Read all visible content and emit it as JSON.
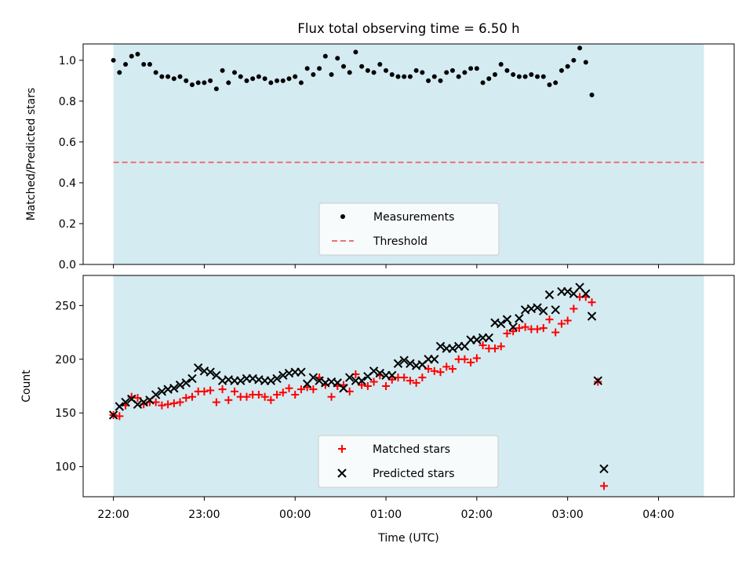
{
  "title": "Flux total observing time = 6.50 h",
  "xlabel": "Time (UTC)",
  "x_ticks": [
    "22:00",
    "23:00",
    "00:00",
    "01:00",
    "02:00",
    "03:00",
    "04:00"
  ],
  "colors": {
    "shade": "#d4ebf1",
    "measurement": "#000000",
    "threshold": "#f07070",
    "matched": "#ff0000",
    "predicted": "#000000"
  },
  "chart_data": [
    {
      "type": "scatter",
      "ylabel": "Matched/Predicted stars",
      "ylim": [
        0,
        1.08
      ],
      "y_ticks": [
        "0.0",
        "0.2",
        "0.4",
        "0.6",
        "0.8",
        "1.0"
      ],
      "x_range_hours": [
        "21:40",
        "04:50"
      ],
      "observing_window": [
        "22:00",
        "04:30"
      ],
      "legend": {
        "placement": "lower center",
        "entries": [
          "Measurements",
          "Threshold"
        ]
      },
      "threshold": 0.5,
      "series": [
        {
          "name": "Measurements",
          "marker": "dot",
          "points": [
            [
              "22:00",
              1.0
            ],
            [
              "22:04",
              0.94
            ],
            [
              "22:08",
              0.98
            ],
            [
              "22:12",
              1.02
            ],
            [
              "22:16",
              1.03
            ],
            [
              "22:20",
              0.98
            ],
            [
              "22:24",
              0.98
            ],
            [
              "22:28",
              0.94
            ],
            [
              "22:32",
              0.92
            ],
            [
              "22:36",
              0.92
            ],
            [
              "22:40",
              0.91
            ],
            [
              "22:44",
              0.92
            ],
            [
              "22:48",
              0.9
            ],
            [
              "22:52",
              0.88
            ],
            [
              "22:56",
              0.89
            ],
            [
              "23:00",
              0.89
            ],
            [
              "23:04",
              0.9
            ],
            [
              "23:08",
              0.86
            ],
            [
              "23:12",
              0.95
            ],
            [
              "23:16",
              0.89
            ],
            [
              "23:20",
              0.94
            ],
            [
              "23:24",
              0.92
            ],
            [
              "23:28",
              0.9
            ],
            [
              "23:32",
              0.91
            ],
            [
              "23:36",
              0.92
            ],
            [
              "23:40",
              0.91
            ],
            [
              "23:44",
              0.89
            ],
            [
              "23:48",
              0.9
            ],
            [
              "23:52",
              0.9
            ],
            [
              "23:56",
              0.91
            ],
            [
              "00:00",
              0.92
            ],
            [
              "00:04",
              0.89
            ],
            [
              "00:08",
              0.96
            ],
            [
              "00:12",
              0.93
            ],
            [
              "00:16",
              0.96
            ],
            [
              "00:20",
              1.02
            ],
            [
              "00:24",
              0.93
            ],
            [
              "00:28",
              1.01
            ],
            [
              "00:32",
              0.97
            ],
            [
              "00:36",
              0.94
            ],
            [
              "00:40",
              1.04
            ],
            [
              "00:44",
              0.97
            ],
            [
              "00:48",
              0.95
            ],
            [
              "00:52",
              0.94
            ],
            [
              "00:56",
              0.98
            ],
            [
              "01:00",
              0.95
            ],
            [
              "01:04",
              0.93
            ],
            [
              "01:08",
              0.92
            ],
            [
              "01:12",
              0.92
            ],
            [
              "01:16",
              0.92
            ],
            [
              "01:20",
              0.95
            ],
            [
              "01:24",
              0.94
            ],
            [
              "01:28",
              0.9
            ],
            [
              "01:32",
              0.92
            ],
            [
              "01:36",
              0.9
            ],
            [
              "01:40",
              0.94
            ],
            [
              "01:44",
              0.95
            ],
            [
              "01:48",
              0.92
            ],
            [
              "01:52",
              0.94
            ],
            [
              "01:56",
              0.96
            ],
            [
              "02:00",
              0.96
            ],
            [
              "02:04",
              0.89
            ],
            [
              "02:08",
              0.91
            ],
            [
              "02:12",
              0.93
            ],
            [
              "02:16",
              0.98
            ],
            [
              "02:20",
              0.95
            ],
            [
              "02:24",
              0.93
            ],
            [
              "02:28",
              0.92
            ],
            [
              "02:32",
              0.92
            ],
            [
              "02:36",
              0.93
            ],
            [
              "02:40",
              0.92
            ],
            [
              "02:44",
              0.92
            ],
            [
              "02:48",
              0.88
            ],
            [
              "02:52",
              0.89
            ],
            [
              "02:56",
              0.95
            ],
            [
              "03:00",
              0.97
            ],
            [
              "03:04",
              1.0
            ],
            [
              "03:08",
              1.06
            ],
            [
              "03:12",
              0.99
            ],
            [
              "03:16",
              0.83
            ]
          ]
        }
      ]
    },
    {
      "type": "scatter",
      "ylabel": "Count",
      "ylim": [
        72,
        278
      ],
      "y_ticks": [
        "100",
        "150",
        "200",
        "250"
      ],
      "legend": {
        "placement": "lower center",
        "entries": [
          "Matched stars",
          "Predicted stars"
        ]
      },
      "series": [
        {
          "name": "Matched stars",
          "marker": "plus",
          "points": [
            [
              "22:00",
              148
            ],
            [
              "22:04",
              147
            ],
            [
              "22:08",
              157
            ],
            [
              "22:12",
              165
            ],
            [
              "22:16",
              164
            ],
            [
              "22:20",
              158
            ],
            [
              "22:24",
              160
            ],
            [
              "22:28",
              160
            ],
            [
              "22:32",
              157
            ],
            [
              "22:36",
              158
            ],
            [
              "22:40",
              159
            ],
            [
              "22:44",
              160
            ],
            [
              "22:48",
              164
            ],
            [
              "22:52",
              165
            ],
            [
              "22:56",
              170
            ],
            [
              "23:00",
              170
            ],
            [
              "23:04",
              171
            ],
            [
              "23:08",
              160
            ],
            [
              "23:12",
              172
            ],
            [
              "23:16",
              162
            ],
            [
              "23:20",
              170
            ],
            [
              "23:24",
              165
            ],
            [
              "23:28",
              165
            ],
            [
              "23:32",
              167
            ],
            [
              "23:36",
              167
            ],
            [
              "23:40",
              165
            ],
            [
              "23:44",
              162
            ],
            [
              "23:48",
              167
            ],
            [
              "23:52",
              169
            ],
            [
              "23:56",
              173
            ],
            [
              "00:00",
              167
            ],
            [
              "00:04",
              172
            ],
            [
              "00:08",
              174
            ],
            [
              "00:12",
              172
            ],
            [
              "00:16",
              183
            ],
            [
              "00:20",
              176
            ],
            [
              "00:24",
              165
            ],
            [
              "00:28",
              175
            ],
            [
              "00:32",
              176
            ],
            [
              "00:36",
              170
            ],
            [
              "00:40",
              186
            ],
            [
              "00:44",
              176
            ],
            [
              "00:48",
              175
            ],
            [
              "00:52",
              179
            ],
            [
              "00:56",
              185
            ],
            [
              "01:00",
              175
            ],
            [
              "01:04",
              181
            ],
            [
              "01:08",
              183
            ],
            [
              "01:12",
              183
            ],
            [
              "01:16",
              180
            ],
            [
              "01:20",
              178
            ],
            [
              "01:24",
              183
            ],
            [
              "01:28",
              191
            ],
            [
              "01:32",
              189
            ],
            [
              "01:36",
              188
            ],
            [
              "01:40",
              193
            ],
            [
              "01:44",
              191
            ],
            [
              "01:48",
              200
            ],
            [
              "01:52",
              200
            ],
            [
              "01:56",
              197
            ],
            [
              "02:00",
              201
            ],
            [
              "02:04",
              213
            ],
            [
              "02:08",
              210
            ],
            [
              "02:12",
              210
            ],
            [
              "02:16",
              212
            ],
            [
              "02:20",
              224
            ],
            [
              "02:24",
              226
            ],
            [
              "02:28",
              229
            ],
            [
              "02:32",
              230
            ],
            [
              "02:36",
              228
            ],
            [
              "02:40",
              228
            ],
            [
              "02:44",
              229
            ],
            [
              "02:48",
              237
            ],
            [
              "02:52",
              225
            ],
            [
              "02:56",
              233
            ],
            [
              "03:00",
              236
            ],
            [
              "03:04",
              247
            ],
            [
              "03:08",
              258
            ],
            [
              "03:12",
              258
            ],
            [
              "03:16",
              253
            ],
            [
              "03:20",
              179
            ],
            [
              "03:24",
              82
            ]
          ]
        },
        {
          "name": "Predicted stars",
          "marker": "x",
          "points": [
            [
              "22:00",
              148
            ],
            [
              "22:04",
              156
            ],
            [
              "22:08",
              160
            ],
            [
              "22:12",
              163
            ],
            [
              "22:16",
              158
            ],
            [
              "22:20",
              160
            ],
            [
              "22:24",
              162
            ],
            [
              "22:28",
              167
            ],
            [
              "22:32",
              170
            ],
            [
              "22:36",
              172
            ],
            [
              "22:40",
              173
            ],
            [
              "22:44",
              176
            ],
            [
              "22:48",
              178
            ],
            [
              "22:52",
              182
            ],
            [
              "22:56",
              192
            ],
            [
              "23:00",
              189
            ],
            [
              "23:04",
              188
            ],
            [
              "23:08",
              185
            ],
            [
              "23:12",
              180
            ],
            [
              "23:16",
              181
            ],
            [
              "23:20",
              180
            ],
            [
              "23:24",
              180
            ],
            [
              "23:28",
              182
            ],
            [
              "23:32",
              182
            ],
            [
              "23:36",
              181
            ],
            [
              "23:40",
              180
            ],
            [
              "23:44",
              180
            ],
            [
              "23:48",
              182
            ],
            [
              "23:52",
              185
            ],
            [
              "23:56",
              187
            ],
            [
              "00:00",
              188
            ],
            [
              "00:04",
              188
            ],
            [
              "00:08",
              177
            ],
            [
              "00:12",
              183
            ],
            [
              "00:16",
              180
            ],
            [
              "00:20",
              178
            ],
            [
              "00:24",
              179
            ],
            [
              "00:28",
              178
            ],
            [
              "00:32",
              173
            ],
            [
              "00:36",
              183
            ],
            [
              "00:40",
              180
            ],
            [
              "00:44",
              180
            ],
            [
              "00:48",
              184
            ],
            [
              "00:52",
              189
            ],
            [
              "00:56",
              187
            ],
            [
              "01:00",
              185
            ],
            [
              "01:04",
              185
            ],
            [
              "01:08",
              196
            ],
            [
              "01:12",
              199
            ],
            [
              "01:16",
              196
            ],
            [
              "01:20",
              194
            ],
            [
              "01:24",
              195
            ],
            [
              "01:28",
              200
            ],
            [
              "01:32",
              200
            ],
            [
              "01:36",
              212
            ],
            [
              "01:40",
              210
            ],
            [
              "01:44",
              210
            ],
            [
              "01:48",
              212
            ],
            [
              "01:52",
              212
            ],
            [
              "01:56",
              218
            ],
            [
              "02:00",
              218
            ],
            [
              "02:04",
              220
            ],
            [
              "02:08",
              220
            ],
            [
              "02:12",
              234
            ],
            [
              "02:16",
              233
            ],
            [
              "02:20",
              237
            ],
            [
              "02:24",
              230
            ],
            [
              "02:28",
              238
            ],
            [
              "02:32",
              246
            ],
            [
              "02:36",
              247
            ],
            [
              "02:40",
              248
            ],
            [
              "02:44",
              245
            ],
            [
              "02:48",
              260
            ],
            [
              "02:52",
              246
            ],
            [
              "02:56",
              263
            ],
            [
              "03:00",
              263
            ],
            [
              "03:04",
              261
            ],
            [
              "03:08",
              267
            ],
            [
              "03:12",
              261
            ],
            [
              "03:16",
              240
            ],
            [
              "03:20",
              180
            ],
            [
              "03:24",
              98
            ]
          ]
        }
      ]
    }
  ]
}
